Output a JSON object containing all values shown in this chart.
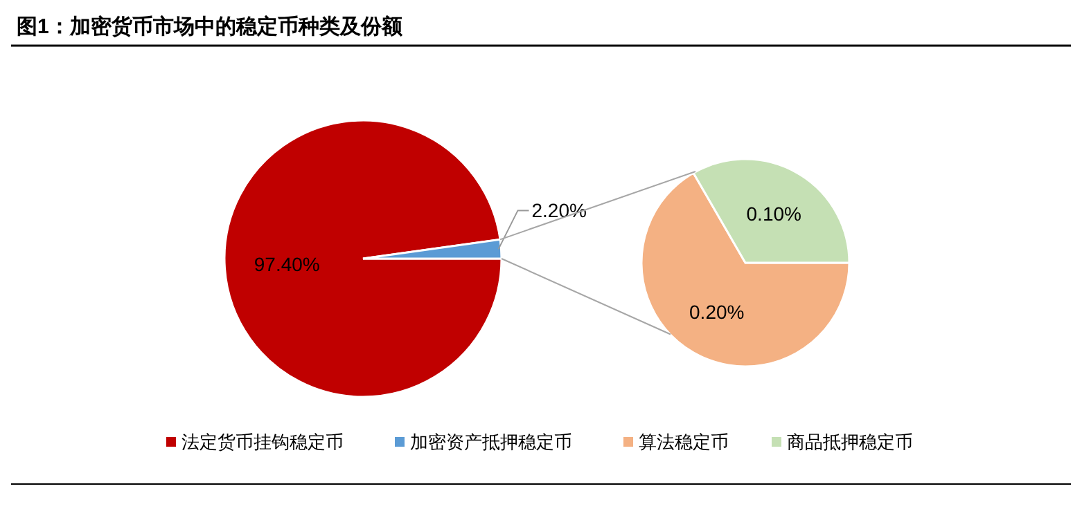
{
  "chart_data": [
    {
      "type": "pie",
      "title": "图1：加密货币市场中的稳定币种类及份额",
      "categories": [
        "法定货币挂钩稳定币",
        "加密资产抵押稳定币"
      ],
      "values": [
        97.4,
        2.2
      ],
      "colors": [
        "#c00000",
        "#5b9bd5"
      ],
      "value_labels": [
        "97.40%",
        "2.20%"
      ],
      "legend": "bottom"
    },
    {
      "type": "pie",
      "categories": [
        "算法稳定币",
        "商品抵押稳定币"
      ],
      "values": [
        0.2,
        0.1
      ],
      "colors": [
        "#f4b183",
        "#c5e0b4"
      ],
      "value_labels": [
        "0.20%",
        "0.10%"
      ],
      "legend": "bottom"
    }
  ]
}
